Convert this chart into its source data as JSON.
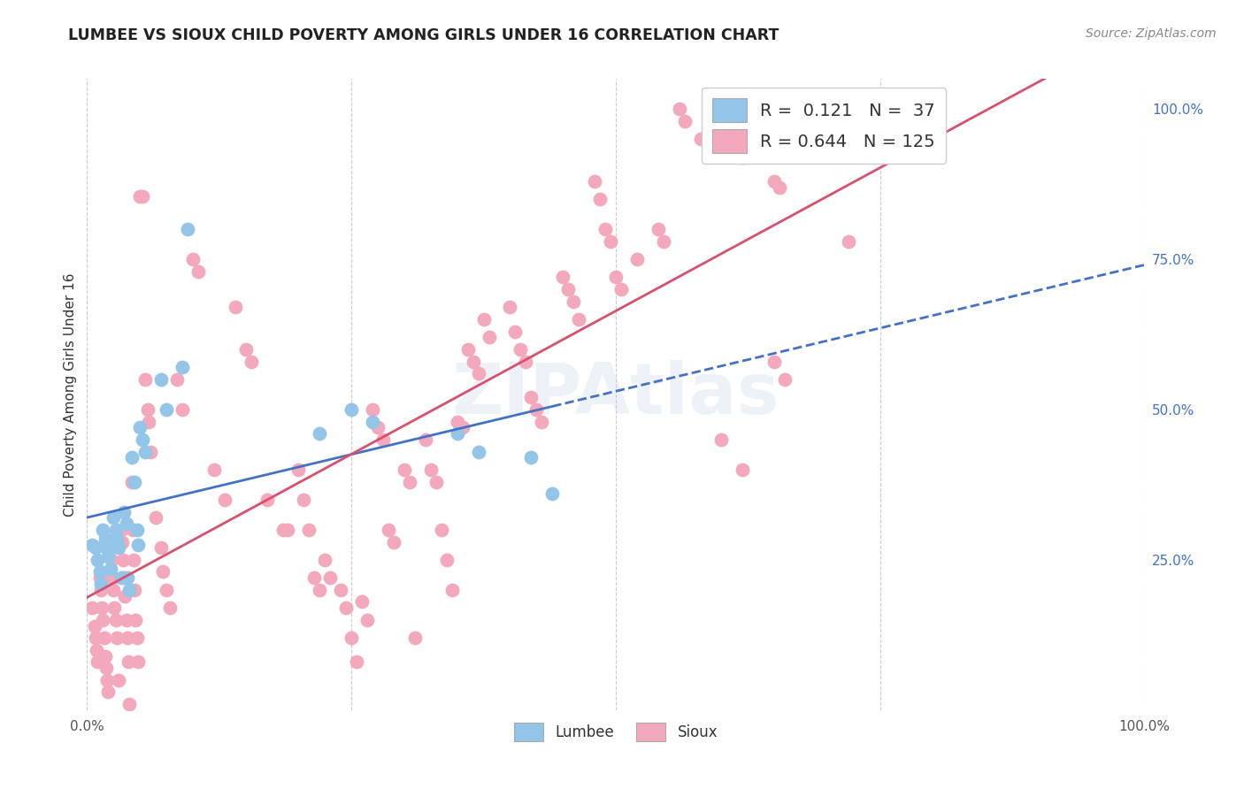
{
  "title": "LUMBEE VS SIOUX CHILD POVERTY AMONG GIRLS UNDER 16 CORRELATION CHART",
  "source": "Source: ZipAtlas.com",
  "ylabel": "Child Poverty Among Girls Under 16",
  "watermark": "ZIPAtlas",
  "lumbee_R": 0.121,
  "lumbee_N": 37,
  "sioux_R": 0.644,
  "sioux_N": 125,
  "lumbee_color": "#92C5E8",
  "sioux_color": "#F4A8BC",
  "lumbee_line_color": "#4472C4",
  "sioux_line_color": "#D94F6E",
  "background_color": "#FFFFFF",
  "grid_color": "#CCCCCC",
  "right_axis_color": "#4472C4",
  "lumbee_points": [
    [
      0.005,
      0.275
    ],
    [
      0.008,
      0.27
    ],
    [
      0.01,
      0.25
    ],
    [
      0.012,
      0.23
    ],
    [
      0.013,
      0.21
    ],
    [
      0.015,
      0.3
    ],
    [
      0.017,
      0.285
    ],
    [
      0.018,
      0.27
    ],
    [
      0.02,
      0.255
    ],
    [
      0.022,
      0.235
    ],
    [
      0.025,
      0.32
    ],
    [
      0.027,
      0.3
    ],
    [
      0.028,
      0.285
    ],
    [
      0.03,
      0.27
    ],
    [
      0.032,
      0.22
    ],
    [
      0.035,
      0.33
    ],
    [
      0.037,
      0.31
    ],
    [
      0.038,
      0.22
    ],
    [
      0.04,
      0.2
    ],
    [
      0.042,
      0.42
    ],
    [
      0.045,
      0.38
    ],
    [
      0.047,
      0.3
    ],
    [
      0.048,
      0.275
    ],
    [
      0.05,
      0.47
    ],
    [
      0.052,
      0.45
    ],
    [
      0.055,
      0.43
    ],
    [
      0.07,
      0.55
    ],
    [
      0.075,
      0.5
    ],
    [
      0.09,
      0.57
    ],
    [
      0.095,
      0.8
    ],
    [
      0.22,
      0.46
    ],
    [
      0.25,
      0.5
    ],
    [
      0.27,
      0.48
    ],
    [
      0.35,
      0.46
    ],
    [
      0.37,
      0.43
    ],
    [
      0.42,
      0.42
    ],
    [
      0.44,
      0.36
    ]
  ],
  "sioux_points": [
    [
      0.005,
      0.17
    ],
    [
      0.007,
      0.14
    ],
    [
      0.008,
      0.12
    ],
    [
      0.009,
      0.1
    ],
    [
      0.01,
      0.08
    ],
    [
      0.012,
      0.22
    ],
    [
      0.013,
      0.2
    ],
    [
      0.014,
      0.17
    ],
    [
      0.015,
      0.15
    ],
    [
      0.016,
      0.12
    ],
    [
      0.017,
      0.09
    ],
    [
      0.018,
      0.07
    ],
    [
      0.019,
      0.05
    ],
    [
      0.02,
      0.03
    ],
    [
      0.022,
      0.27
    ],
    [
      0.023,
      0.25
    ],
    [
      0.024,
      0.22
    ],
    [
      0.025,
      0.2
    ],
    [
      0.026,
      0.17
    ],
    [
      0.027,
      0.15
    ],
    [
      0.028,
      0.12
    ],
    [
      0.03,
      0.05
    ],
    [
      0.032,
      0.3
    ],
    [
      0.033,
      0.28
    ],
    [
      0.034,
      0.25
    ],
    [
      0.035,
      0.22
    ],
    [
      0.036,
      0.19
    ],
    [
      0.037,
      0.15
    ],
    [
      0.038,
      0.12
    ],
    [
      0.039,
      0.08
    ],
    [
      0.04,
      0.01
    ],
    [
      0.042,
      0.38
    ],
    [
      0.043,
      0.3
    ],
    [
      0.044,
      0.25
    ],
    [
      0.045,
      0.2
    ],
    [
      0.046,
      0.15
    ],
    [
      0.047,
      0.12
    ],
    [
      0.048,
      0.08
    ],
    [
      0.05,
      0.855
    ],
    [
      0.052,
      0.855
    ],
    [
      0.055,
      0.55
    ],
    [
      0.057,
      0.5
    ],
    [
      0.058,
      0.48
    ],
    [
      0.06,
      0.43
    ],
    [
      0.065,
      0.32
    ],
    [
      0.07,
      0.27
    ],
    [
      0.072,
      0.23
    ],
    [
      0.075,
      0.2
    ],
    [
      0.078,
      0.17
    ],
    [
      0.085,
      0.55
    ],
    [
      0.09,
      0.5
    ],
    [
      0.1,
      0.75
    ],
    [
      0.105,
      0.73
    ],
    [
      0.12,
      0.4
    ],
    [
      0.13,
      0.35
    ],
    [
      0.14,
      0.67
    ],
    [
      0.15,
      0.6
    ],
    [
      0.155,
      0.58
    ],
    [
      0.17,
      0.35
    ],
    [
      0.185,
      0.3
    ],
    [
      0.19,
      0.3
    ],
    [
      0.2,
      0.4
    ],
    [
      0.205,
      0.35
    ],
    [
      0.21,
      0.3
    ],
    [
      0.215,
      0.22
    ],
    [
      0.22,
      0.2
    ],
    [
      0.225,
      0.25
    ],
    [
      0.23,
      0.22
    ],
    [
      0.24,
      0.2
    ],
    [
      0.245,
      0.17
    ],
    [
      0.25,
      0.12
    ],
    [
      0.255,
      0.08
    ],
    [
      0.26,
      0.18
    ],
    [
      0.265,
      0.15
    ],
    [
      0.27,
      0.5
    ],
    [
      0.275,
      0.47
    ],
    [
      0.28,
      0.45
    ],
    [
      0.285,
      0.3
    ],
    [
      0.29,
      0.28
    ],
    [
      0.3,
      0.4
    ],
    [
      0.305,
      0.38
    ],
    [
      0.31,
      0.12
    ],
    [
      0.32,
      0.45
    ],
    [
      0.325,
      0.4
    ],
    [
      0.33,
      0.38
    ],
    [
      0.335,
      0.3
    ],
    [
      0.34,
      0.25
    ],
    [
      0.345,
      0.2
    ],
    [
      0.35,
      0.48
    ],
    [
      0.355,
      0.47
    ],
    [
      0.36,
      0.6
    ],
    [
      0.365,
      0.58
    ],
    [
      0.37,
      0.56
    ],
    [
      0.375,
      0.65
    ],
    [
      0.38,
      0.62
    ],
    [
      0.4,
      0.67
    ],
    [
      0.405,
      0.63
    ],
    [
      0.41,
      0.6
    ],
    [
      0.415,
      0.58
    ],
    [
      0.42,
      0.52
    ],
    [
      0.425,
      0.5
    ],
    [
      0.43,
      0.48
    ],
    [
      0.45,
      0.72
    ],
    [
      0.455,
      0.7
    ],
    [
      0.46,
      0.68
    ],
    [
      0.465,
      0.65
    ],
    [
      0.48,
      0.88
    ],
    [
      0.485,
      0.85
    ],
    [
      0.49,
      0.8
    ],
    [
      0.495,
      0.78
    ],
    [
      0.5,
      0.72
    ],
    [
      0.505,
      0.7
    ],
    [
      0.52,
      0.75
    ],
    [
      0.54,
      0.8
    ],
    [
      0.545,
      0.78
    ],
    [
      0.56,
      1.0
    ],
    [
      0.565,
      0.98
    ],
    [
      0.58,
      0.95
    ],
    [
      0.6,
      0.93
    ],
    [
      0.62,
      0.92
    ],
    [
      0.65,
      0.88
    ],
    [
      0.655,
      0.87
    ],
    [
      0.67,
      1.0
    ],
    [
      0.68,
      0.98
    ],
    [
      0.7,
      0.95
    ],
    [
      0.71,
      0.93
    ],
    [
      0.72,
      0.78
    ],
    [
      0.6,
      0.45
    ],
    [
      0.62,
      0.4
    ],
    [
      0.65,
      0.58
    ],
    [
      0.66,
      0.55
    ]
  ]
}
